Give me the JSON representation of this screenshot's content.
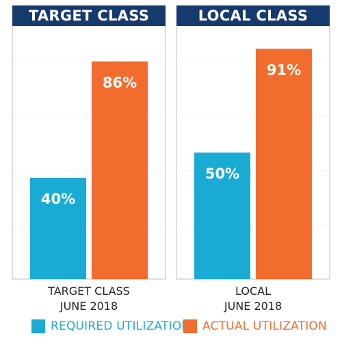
{
  "panels": [
    {
      "title": "TARGET CLASS"
    },
    {
      "title": "LOCAL CLASS"
    }
  ],
  "legend": {
    "items": [
      {
        "label": "REQUIRED UTILIZATION",
        "color": "#1aabd4"
      },
      {
        "label": "ACTUAL UTILIZATION",
        "color": "#f26c2d"
      }
    ]
  },
  "colors": {
    "header_bg": "#173a6e",
    "required": "#1aabd4",
    "actual": "#f26c2d",
    "gridline": "#d9d9d9",
    "axis": "#bdbdbd"
  },
  "chart_data": {
    "type": "bar",
    "categories": [
      [
        "TARGET CLASS",
        "JUNE 2018"
      ],
      [
        "LOCAL",
        "JUNE 2018"
      ]
    ],
    "series": [
      {
        "name": "REQUIRED UTILIZATION",
        "values": [
          40,
          50
        ],
        "labels": [
          "40%",
          "50%"
        ]
      },
      {
        "name": "ACTUAL UTILIZATION",
        "values": [
          86,
          91
        ],
        "labels": [
          "86%",
          "91%"
        ]
      }
    ],
    "ylim": [
      0,
      100
    ],
    "grid": true,
    "legend_position": "bottom"
  }
}
